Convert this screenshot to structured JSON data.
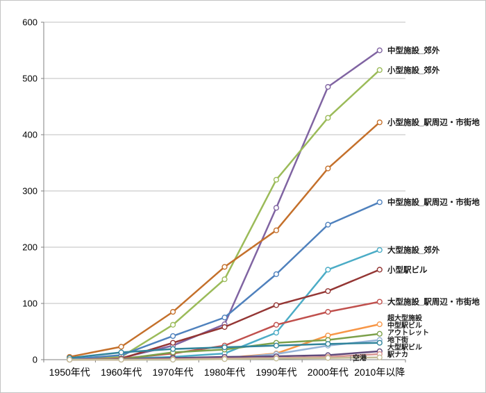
{
  "chart_data": {
    "type": "line",
    "title": "",
    "xlabel": "",
    "ylabel": "",
    "categories": [
      "1950年代",
      "1960年代",
      "1970年代",
      "1980年代",
      "1990年代",
      "2000年代",
      "2010年以降"
    ],
    "series": [
      {
        "name": "中型施設_郊外",
        "color": "#8064A2",
        "values": [
          0,
          3,
          25,
          63,
          270,
          485,
          550
        ]
      },
      {
        "name": "小型施設_郊外",
        "color": "#9BBB59",
        "values": [
          1,
          5,
          62,
          143,
          320,
          430,
          515
        ]
      },
      {
        "name": "小型施設_駅周辺・市街地",
        "color": "#C4702B",
        "values": [
          5,
          23,
          85,
          165,
          230,
          340,
          422
        ]
      },
      {
        "name": "中型施設_駅周辺・市街地",
        "color": "#4F81BD",
        "values": [
          1,
          8,
          42,
          75,
          152,
          240,
          280
        ]
      },
      {
        "name": "大型施設_郊外",
        "color": "#4BACC6",
        "values": [
          0,
          2,
          5,
          11,
          48,
          160,
          195
        ]
      },
      {
        "name": "小型駅ビル",
        "color": "#943634",
        "values": [
          0,
          2,
          30,
          58,
          97,
          122,
          160
        ]
      },
      {
        "name": "大型施設_駅周辺・市街地",
        "color": "#C0504D",
        "values": [
          0,
          2,
          11,
          25,
          62,
          85,
          103
        ]
      },
      {
        "name": "超大型施設",
        "color": "#F79646",
        "values": [
          0,
          0,
          1,
          3,
          11,
          43,
          63
        ]
      },
      {
        "name": "中型駅ビル",
        "color": "#7CA04A",
        "values": [
          0,
          1,
          13,
          18,
          30,
          35,
          46
        ]
      },
      {
        "name": "アウトレット",
        "color": "#95B3D7",
        "values": [
          0,
          0,
          0,
          2,
          10,
          25,
          35
        ]
      },
      {
        "name": "地下街",
        "color": "#31849B",
        "values": [
          3,
          13,
          19,
          22,
          25,
          28,
          30
        ]
      },
      {
        "name": "大型駅ビル",
        "color": "#604A7B",
        "values": [
          0,
          1,
          3,
          5,
          6,
          8,
          15
        ]
      },
      {
        "name": "駅ナカ",
        "color": "#D99694",
        "values": [
          0,
          0,
          1,
          2,
          3,
          5,
          10
        ]
      },
      {
        "name": "空港",
        "color": "#C4BD97",
        "values": [
          0,
          0,
          0,
          1,
          2,
          3,
          4
        ]
      }
    ],
    "ylim": [
      0,
      600
    ],
    "yticks": [
      0,
      100,
      200,
      300,
      400,
      500,
      600
    ],
    "grid": true,
    "marker": "circle-open",
    "legend_position": "labels-at-line-ends",
    "colors": {
      "background": "#FFFFFF",
      "gridline": "#BFBFBF",
      "axis": "#808080",
      "tick_label": "#000000",
      "series_label": "#1a1a1a",
      "frame_border": "#C3C3C3"
    }
  }
}
